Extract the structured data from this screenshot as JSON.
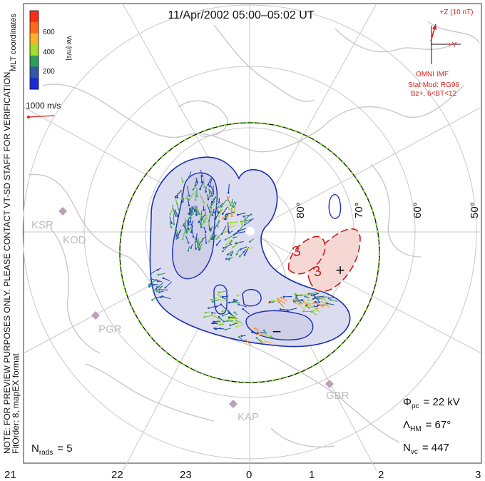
{
  "title": "11/Apr/2002 05:00–05:02 UT",
  "colorbar": {
    "ticks": [
      "600",
      "400",
      "200"
    ],
    "label": "Vel [m/s]",
    "colors": [
      "#ff2a1a",
      "#ff6a18",
      "#ffb02a",
      "#a4dd2e",
      "#2e9c5e",
      "#2e5aa8",
      "#1f2ad6"
    ]
  },
  "coord_label": "MLT coordinates",
  "vector_scale": "1000 m/s",
  "side_note": "NOTE: FOR PREVIEW PURPOSES ONLY. PLEASE CONTACT VT-SD STAFF FOR VERIFICATION.",
  "fit_info": "FitOrder: 8, mapEX format",
  "imf": {
    "z_label": "+Z (10 nT)",
    "y_label": "+Y",
    "source": "OMNI IMF",
    "model": "Stat Mod: RG96",
    "condition": "Bz+, 6<BT<12"
  },
  "lat_labels": [
    "80°",
    "70°",
    "60°",
    "50°"
  ],
  "mlt_labels": [
    "21",
    "22",
    "23",
    "0",
    "1",
    "2",
    "3"
  ],
  "stations": [
    "KSR",
    "KOD",
    "PGR",
    "KAP",
    "GBR"
  ],
  "contours": {
    "neg_label": "−",
    "pos_label": "+",
    "pos_value_a": "3",
    "pos_value_b": "3"
  },
  "stats": {
    "phi_sym": "Φ",
    "phi_sub": "pc",
    "phi_val": "= 22 kV",
    "lam_sym": "Λ",
    "lam_sub": "HM",
    "lam_val": "= 67°",
    "nvc_sym": "N",
    "nvc_sub": "vc",
    "nvc_val": "= 447",
    "nrads_sym": "N",
    "nrads_sub": "rads",
    "nrads_val": "= 5"
  },
  "colors": {
    "neg_contour": "#1a2fb0",
    "neg_fill": "#dcdcf0",
    "pos_contour": "#c81e1e",
    "pos_fill": "#f5d8d4",
    "land": "#c8c8c8",
    "grid": "#c8c8c8",
    "station": "#b9a2b8",
    "imf": "#d4221a"
  }
}
